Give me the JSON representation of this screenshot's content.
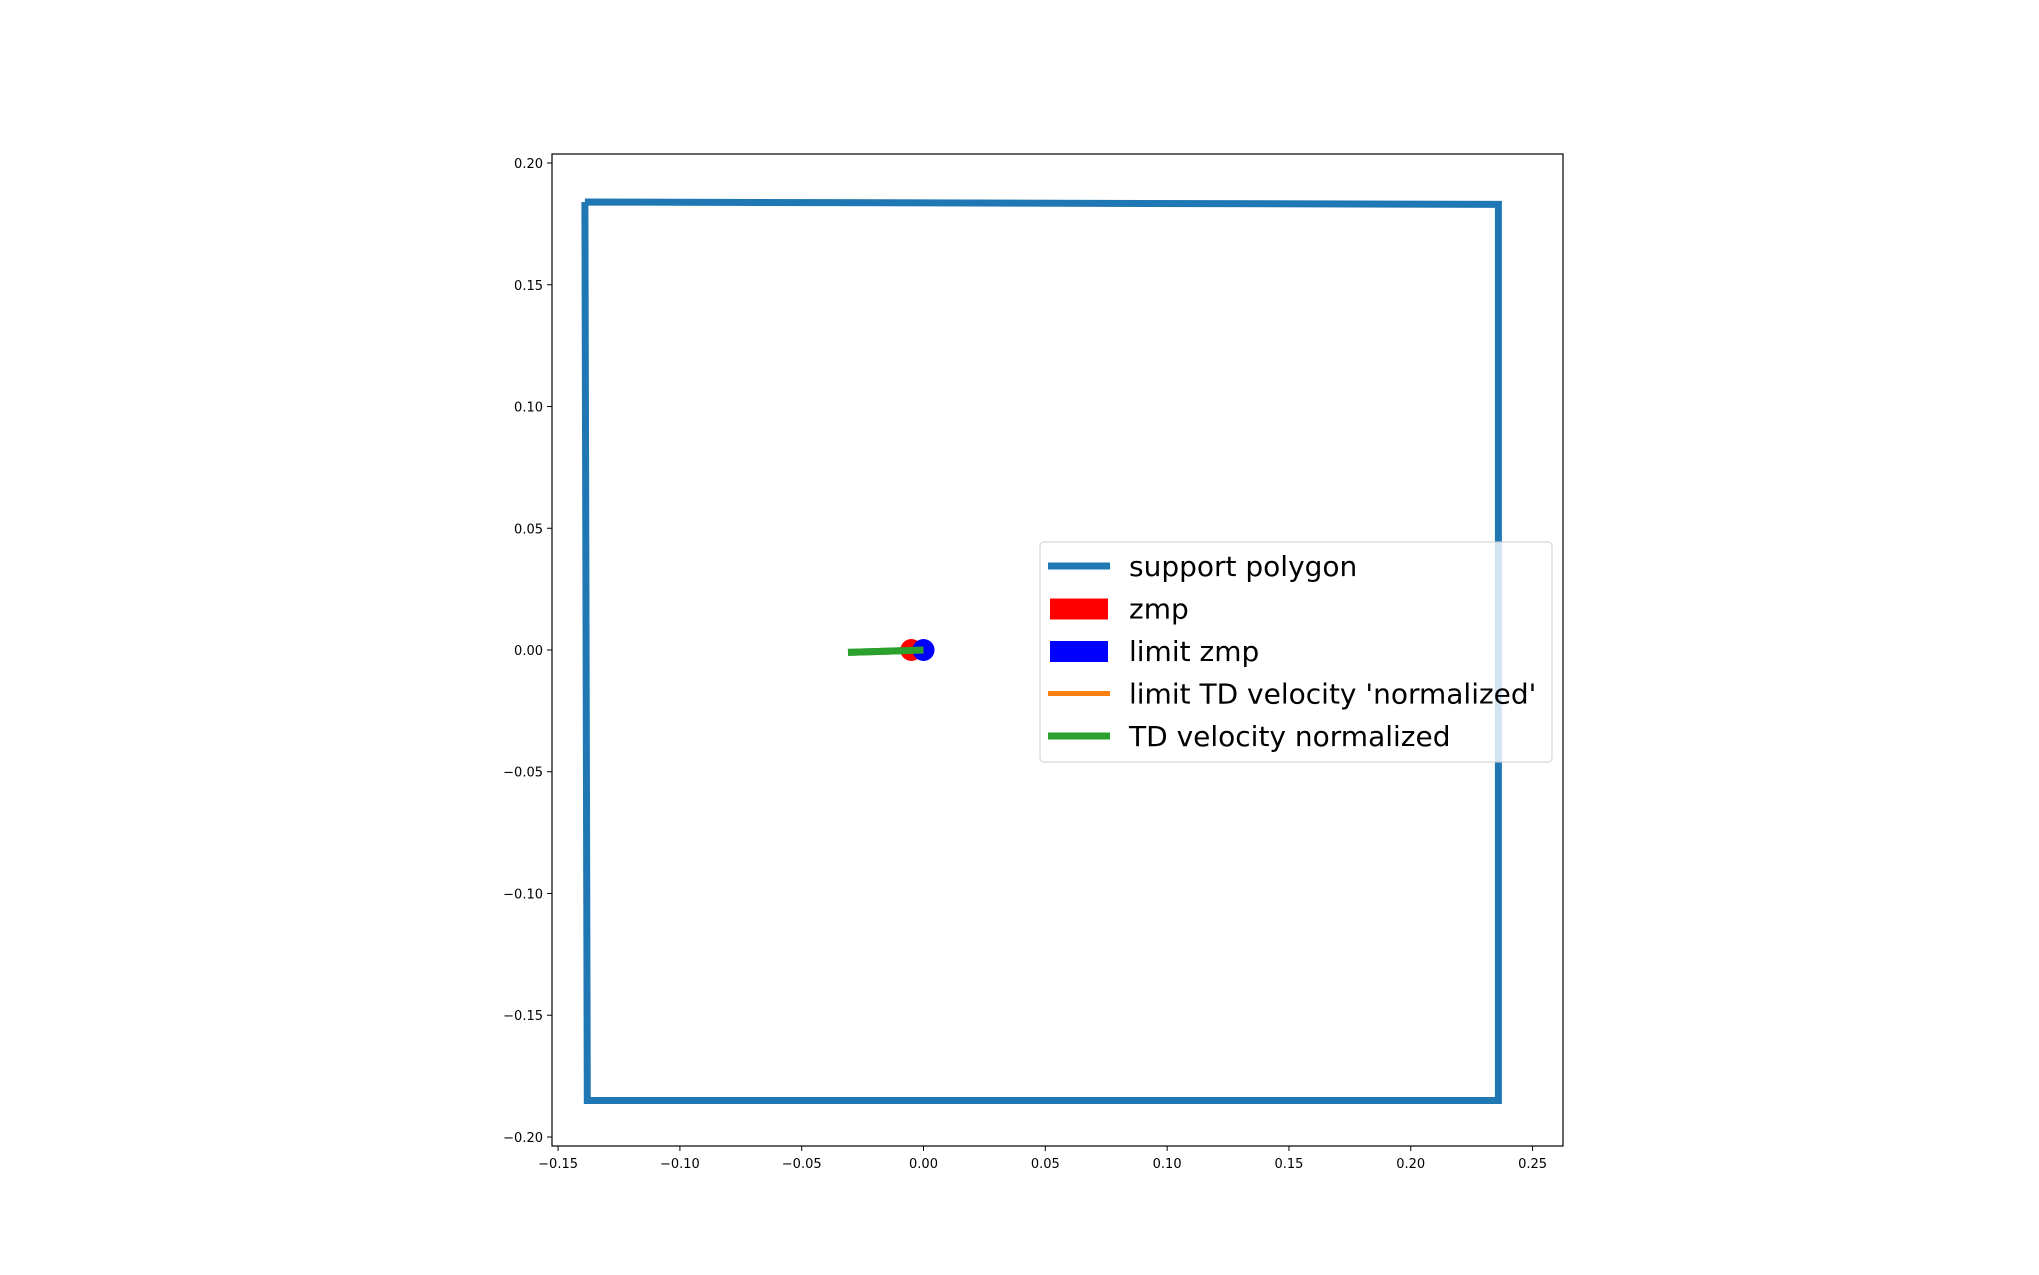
{
  "chart_data": {
    "type": "line",
    "xlim": [
      -0.1525,
      0.2625
    ],
    "ylim": [
      -0.2037,
      0.2037
    ],
    "grid": false,
    "legend_placement": "center-right",
    "x_ticks": [
      -0.15,
      -0.1,
      -0.05,
      0.0,
      0.05,
      0.1,
      0.15,
      0.2,
      0.25
    ],
    "x_tick_labels": [
      "−0.15",
      "−0.10",
      "−0.05",
      "0.00",
      "0.05",
      "0.10",
      "0.15",
      "0.20",
      "0.25"
    ],
    "y_ticks": [
      0.2,
      0.15,
      0.1,
      0.05,
      0.0,
      -0.05,
      -0.1,
      -0.15,
      -0.2
    ],
    "y_tick_labels": [
      "0.20",
      "0.15",
      "0.10",
      "0.05",
      "0.00",
      "−0.05",
      "−0.10",
      "−0.15",
      "−0.20"
    ],
    "series": [
      {
        "name": "support polygon",
        "kind": "line",
        "color": "#1f77b4",
        "x": [
          -0.139,
          0.236,
          0.236,
          -0.138,
          -0.139
        ],
        "y": [
          0.184,
          0.183,
          -0.185,
          -0.185,
          0.184
        ]
      },
      {
        "name": "zmp",
        "kind": "point",
        "color": "#ff0000",
        "x": [
          -0.005
        ],
        "y": [
          0.0
        ]
      },
      {
        "name": "limit zmp",
        "kind": "point",
        "color": "#0000ff",
        "x": [
          0.0
        ],
        "y": [
          0.0
        ]
      },
      {
        "name": "limit TD velocity 'normalized'",
        "kind": "line",
        "color": "#ff7f0e",
        "x": [],
        "y": []
      },
      {
        "name": "TD velocity normalized",
        "kind": "line",
        "color": "#2ca02c",
        "x": [
          -0.031,
          0.0
        ],
        "y": [
          -0.001,
          0.0
        ]
      }
    ]
  }
}
